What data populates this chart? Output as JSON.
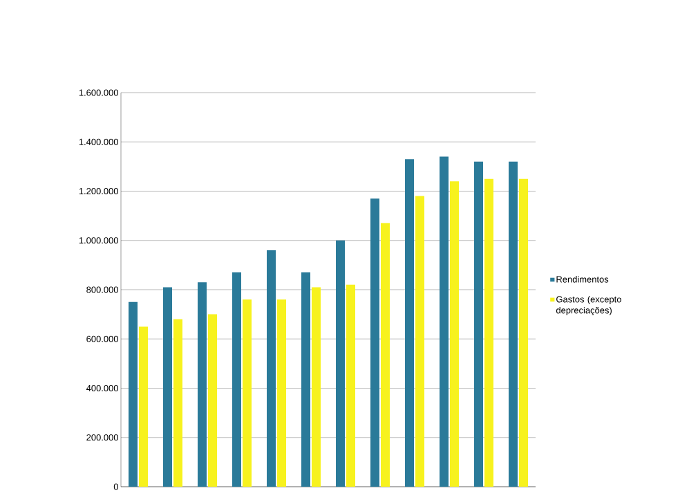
{
  "chart_data": {
    "type": "bar",
    "categories": [
      null,
      null,
      null,
      null,
      null,
      null,
      null,
      null,
      null,
      null,
      null,
      null
    ],
    "series": [
      {
        "name": "Rendimentos",
        "color": "#2a7a99",
        "values": [
          750000,
          810000,
          830000,
          870000,
          960000,
          870000,
          1000000,
          1170000,
          1330000,
          1340000,
          1320000,
          1320000
        ]
      },
      {
        "name": "Gastos (excepto depreciações)",
        "color": "#f7f21e",
        "values": [
          650000,
          680000,
          700000,
          760000,
          760000,
          810000,
          820000,
          1070000,
          1180000,
          1240000,
          1250000,
          1250000
        ]
      }
    ],
    "ylim": [
      0,
      1600000
    ],
    "yticks": [
      {
        "value": 0,
        "label": "0"
      },
      {
        "value": 200000,
        "label": "200.000"
      },
      {
        "value": 400000,
        "label": "400.000"
      },
      {
        "value": 600000,
        "label": "600.000"
      },
      {
        "value": 800000,
        "label": "800.000"
      },
      {
        "value": 1000000,
        "label": "1.000.000"
      },
      {
        "value": 1200000,
        "label": "1.200.000"
      },
      {
        "value": 1400000,
        "label": "1.400.000"
      },
      {
        "value": 1600000,
        "label": "1.600.000"
      }
    ],
    "grid": "y",
    "legend": "right"
  }
}
